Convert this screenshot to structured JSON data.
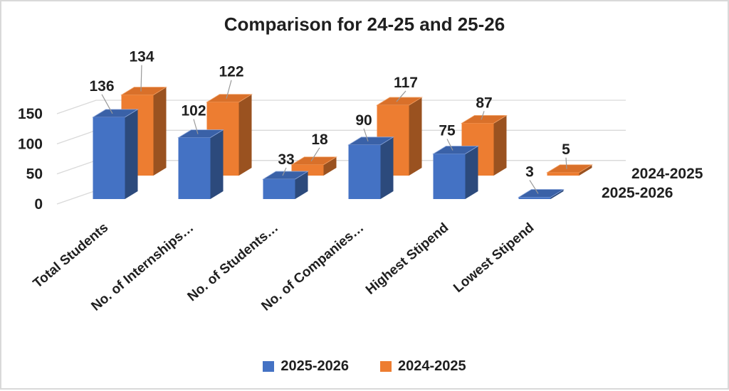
{
  "chart_data": {
    "type": "bar",
    "subtype": "3d-clustered-column",
    "title": "Comparison for 24-25 and 25-26",
    "categories": [
      "Total Students",
      "No. of  Internships…",
      "No. of Students…",
      "No. of Companies…",
      "Highest Stipend",
      "Lowest Stipend"
    ],
    "series": [
      {
        "name": "2025-2026",
        "color": "#4472C4",
        "top_color": "#3A61A7",
        "side_color": "#2C4A7C",
        "edge_color": "#8FA9DC",
        "values": [
          136,
          102,
          33,
          90,
          75,
          3
        ]
      },
      {
        "name": "2024-2025",
        "color": "#ED7D31",
        "top_color": "#D9702A",
        "side_color": "#9A5220",
        "edge_color": "#F2A369",
        "values": [
          134,
          122,
          18,
          117,
          87,
          5
        ]
      }
    ],
    "y_axis": {
      "min": 0,
      "max": 150,
      "ticks": [
        0,
        50,
        100,
        150
      ]
    },
    "depth_axis_labels": [
      "2024-2025",
      "2025-2026"
    ],
    "legend": {
      "position": "bottom",
      "entries": [
        "2025-2026",
        "2024-2025"
      ]
    },
    "data_labels": true,
    "grid": true,
    "grid_color": "#D9D9D9",
    "leader_line_color": "#999999",
    "text_color": "#1f1f1f"
  }
}
